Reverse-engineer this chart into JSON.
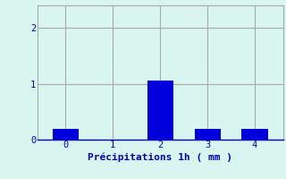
{
  "categories": [
    0,
    1,
    2,
    3,
    4
  ],
  "values": [
    0.2,
    0.0,
    1.05,
    0.2,
    0.2
  ],
  "bar_color": "#0000dd",
  "background_color": "#d8f5f0",
  "xlabel": "Précipitations 1h ( mm )",
  "ylim": [
    0,
    2.4
  ],
  "xlim": [
    -0.6,
    4.6
  ],
  "yticks": [
    0,
    1,
    2
  ],
  "xticks": [
    0,
    1,
    2,
    3,
    4
  ],
  "grid_color": "#aaaaaa",
  "label_color": "#0000cc",
  "xlabel_fontsize": 8,
  "tick_fontsize": 7.5,
  "bar_width": 0.55
}
